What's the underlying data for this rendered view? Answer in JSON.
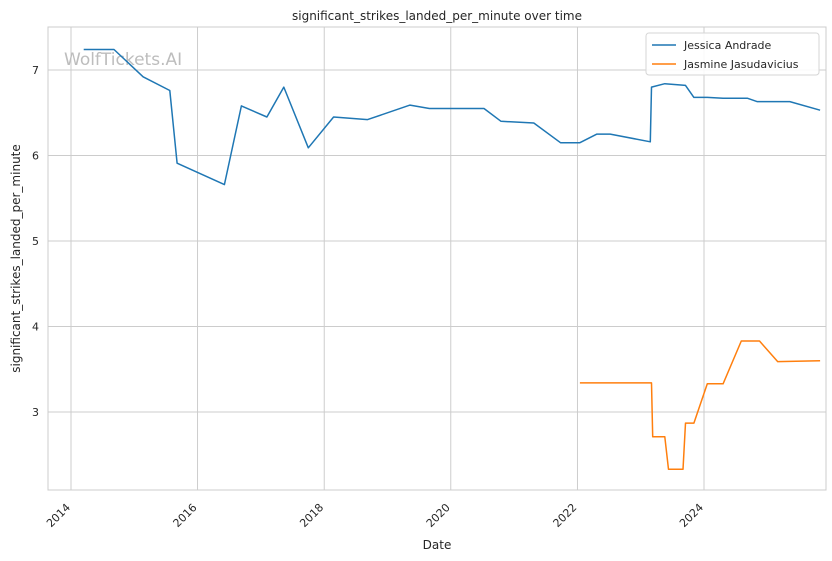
{
  "chart_data": {
    "type": "line",
    "title": "significant_strikes_landed_per_minute over time",
    "xlabel": "Date",
    "ylabel": "significant_strikes_landed_per_minute",
    "watermark": "WolfTickets.AI",
    "x_ticks": [
      "2014",
      "2016",
      "2018",
      "2020",
      "2022",
      "2024"
    ],
    "y_ticks": [
      3,
      4,
      5,
      6,
      7
    ],
    "xlim": [
      "2013-09-01",
      "2025-11-01"
    ],
    "ylim": [
      2.09,
      7.5
    ],
    "grid": true,
    "legend_position": "top-right",
    "series": [
      {
        "name": "Jessica Andrade",
        "color": "#1f77b4",
        "points": [
          [
            "2014-03-15",
            7.24
          ],
          [
            "2014-09-06",
            7.24
          ],
          [
            "2015-02-21",
            6.92
          ],
          [
            "2015-07-25",
            6.76
          ],
          [
            "2015-09-05",
            5.91
          ],
          [
            "2016-06-04",
            5.66
          ],
          [
            "2016-09-10",
            6.58
          ],
          [
            "2017-02-04",
            6.45
          ],
          [
            "2017-05-13",
            6.8
          ],
          [
            "2017-10-01",
            6.09
          ],
          [
            "2018-02-24",
            6.45
          ],
          [
            "2018-09-08",
            6.42
          ],
          [
            "2019-05-11",
            6.59
          ],
          [
            "2019-08-31",
            6.55
          ],
          [
            "2020-07-11",
            6.55
          ],
          [
            "2020-10-17",
            6.4
          ],
          [
            "2021-04-24",
            6.38
          ],
          [
            "2021-09-25",
            6.15
          ],
          [
            "2022-01-15",
            6.15
          ],
          [
            "2022-04-23",
            6.25
          ],
          [
            "2022-07-09",
            6.25
          ],
          [
            "2023-02-25",
            6.16
          ],
          [
            "2023-03-04",
            6.8
          ],
          [
            "2023-05-20",
            6.84
          ],
          [
            "2023-09-16",
            6.82
          ],
          [
            "2023-11-04",
            6.68
          ],
          [
            "2024-01-20",
            6.68
          ],
          [
            "2024-04-20",
            6.67
          ],
          [
            "2024-09-07",
            6.67
          ],
          [
            "2024-11-02",
            6.63
          ],
          [
            "2025-05-10",
            6.63
          ],
          [
            "2025-11-01",
            6.53
          ]
        ]
      },
      {
        "name": "Jasmine Jasudavicius",
        "color": "#ff7f0e",
        "points": [
          [
            "2022-01-15",
            3.34
          ],
          [
            "2023-03-04",
            3.34
          ],
          [
            "2023-03-11",
            2.71
          ],
          [
            "2023-05-20",
            2.71
          ],
          [
            "2023-06-10",
            2.33
          ],
          [
            "2023-09-02",
            2.33
          ],
          [
            "2023-09-16",
            2.87
          ],
          [
            "2023-11-04",
            2.87
          ],
          [
            "2024-01-20",
            3.33
          ],
          [
            "2024-04-20",
            3.33
          ],
          [
            "2024-08-03",
            3.83
          ],
          [
            "2024-11-16",
            3.83
          ],
          [
            "2025-03-01",
            3.59
          ],
          [
            "2025-11-01",
            3.6
          ]
        ]
      }
    ]
  }
}
